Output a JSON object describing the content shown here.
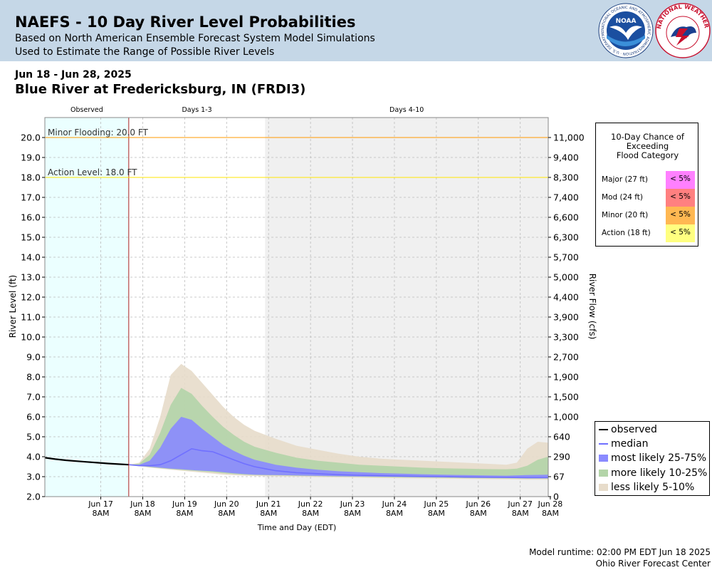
{
  "header": {
    "title": "NAEFS - 10 Day River Level Probabilities",
    "subtitle_1": "Based on North American Ensemble Forecast System Model Simulations",
    "subtitle_2": "Used to Estimate the Range of Possible River Levels",
    "noaa_logo_text": "NOAA",
    "noaa_ring_text": "NATIONAL OCEANIC AND ATMOSPHERIC ADMINISTRATION · U.S. DEPARTMENT OF COMMERCE",
    "nws_ring_text": "NATIONAL WEATHER SERVICE"
  },
  "date_range": "Jun 18 - Jun 28, 2025",
  "location": "Blue River at Fredericksburg, IN (FRDI3)",
  "footer": {
    "runtime": "Model runtime: 02:00 PM EDT Jun 18 2025",
    "center": "Ohio River Forecast Center"
  },
  "flood_table": {
    "title_lines": [
      "10-Day Chance of",
      "Exceeding",
      "Flood Category"
    ],
    "rows": [
      {
        "label": "Major (27 ft)",
        "value": "< 5%",
        "color": "#ff80ff"
      },
      {
        "label": "Mod (24 ft)",
        "value": "< 5%",
        "color": "#ff8080"
      },
      {
        "label": "Minor (20 ft)",
        "value": "< 5%",
        "color": "#ffb852"
      },
      {
        "label": "Action (18 ft)",
        "value": "< 5%",
        "color": "#ffff80"
      }
    ]
  },
  "legend": {
    "items": [
      {
        "label": "observed",
        "kind": "line",
        "color": "#000000"
      },
      {
        "label": "median",
        "kind": "line",
        "color": "#7070ff"
      },
      {
        "label": "most likely 25-75%",
        "kind": "fill",
        "color": "#8a8aff"
      },
      {
        "label": "more likely 10-25%",
        "kind": "fill",
        "color": "#b3d4a8"
      },
      {
        "label": "less likely 5-10%",
        "kind": "fill",
        "color": "#e7dcca"
      }
    ]
  },
  "chart_data": {
    "type": "area",
    "xlabel": "Time and Day (EDT)",
    "ylabel": "River Level (ft)",
    "y2label": "River Flow (cfs)",
    "ylim": [
      2.0,
      21.0
    ],
    "xlim": [
      16.0,
      28.0
    ],
    "x_unit": "day of June 2025 (fractional)",
    "grid": true,
    "yticks": [
      2.0,
      3.0,
      4.0,
      5.0,
      6.0,
      7.0,
      8.0,
      9.0,
      10.0,
      11.0,
      12.0,
      13.0,
      14.0,
      15.0,
      16.0,
      17.0,
      18.0,
      19.0,
      20.0
    ],
    "ytick_labels": [
      "2.0",
      "3.0",
      "4.0",
      "5.0",
      "6.0",
      "7.0",
      "8.0",
      "9.0",
      "10.0",
      "11.0",
      "12.0",
      "13.0",
      "14.0",
      "15.0",
      "16.0",
      "17.0",
      "18.0",
      "19.0",
      "20.0"
    ],
    "flow_labels": [
      "0",
      "67",
      "290",
      "640",
      "1,000",
      "1,500",
      "1,900",
      "2,700",
      "3,300",
      "3,900",
      "4,400",
      "5,000",
      "5,700",
      "6,300",
      "6,600",
      "7,400",
      "8,300",
      "9,400",
      "11,000"
    ],
    "xticks": [
      {
        "x": 17.333,
        "day": "Jun 17",
        "time": "8AM"
      },
      {
        "x": 18.333,
        "day": "Jun 18",
        "time": "8AM"
      },
      {
        "x": 19.333,
        "day": "Jun 19",
        "time": "8AM"
      },
      {
        "x": 20.333,
        "day": "Jun 20",
        "time": "8AM"
      },
      {
        "x": 21.333,
        "day": "Jun 21",
        "time": "8AM"
      },
      {
        "x": 22.333,
        "day": "Jun 22",
        "time": "8AM"
      },
      {
        "x": 23.333,
        "day": "Jun 23",
        "time": "8AM"
      },
      {
        "x": 24.333,
        "day": "Jun 24",
        "time": "8AM"
      },
      {
        "x": 25.333,
        "day": "Jun 25",
        "time": "8AM"
      },
      {
        "x": 26.333,
        "day": "Jun 26",
        "time": "8AM"
      },
      {
        "x": 27.333,
        "day": "Jun 27",
        "time": "8AM"
      },
      {
        "x": 28.333,
        "day": "Jun 28",
        "time": "8AM"
      }
    ],
    "periods": [
      {
        "label": "Observed",
        "start": 16.0,
        "end": 18.0
      },
      {
        "label": "Days 1-3",
        "start": 18.0,
        "end": 21.25
      },
      {
        "label": "Days 4-10",
        "start": 21.25,
        "end": 28.0
      }
    ],
    "forecast_start": 18.0,
    "thresholds": [
      {
        "label": "Minor Flooding: 20.0 FT",
        "value": 20.0,
        "color": "#ff9900"
      },
      {
        "label": "Action Level: 18.0 FT",
        "value": 18.0,
        "color": "#ffe600"
      }
    ],
    "observed": {
      "name": "observed",
      "x": [
        16.0,
        16.25,
        16.5,
        16.75,
        17.0,
        17.25,
        17.5,
        17.75,
        18.0
      ],
      "y": [
        3.95,
        3.88,
        3.82,
        3.78,
        3.74,
        3.7,
        3.66,
        3.63,
        3.6
      ]
    },
    "median": {
      "name": "median",
      "x": [
        18.0,
        18.25,
        18.5,
        18.75,
        19.0,
        19.25,
        19.5,
        19.75,
        20.0,
        20.25,
        20.5,
        20.75,
        21.0,
        21.5,
        22.0,
        22.5,
        23.0,
        23.5,
        24.0,
        24.5,
        25.0,
        25.5,
        26.0,
        26.5,
        27.0,
        27.5,
        28.0
      ],
      "y": [
        3.6,
        3.55,
        3.55,
        3.6,
        3.8,
        4.1,
        4.4,
        4.3,
        4.25,
        4.05,
        3.85,
        3.65,
        3.5,
        3.3,
        3.2,
        3.15,
        3.1,
        3.07,
        3.05,
        3.03,
        3.01,
        3.0,
        2.98,
        2.97,
        2.96,
        2.95,
        2.95
      ]
    },
    "bands": [
      {
        "name": "less likely 5-10%",
        "color": "#e7dcca",
        "x": [
          18.0,
          18.25,
          18.5,
          18.75,
          19.0,
          19.25,
          19.5,
          19.75,
          20.0,
          20.25,
          20.5,
          20.75,
          21.0,
          21.5,
          22.0,
          22.5,
          23.0,
          23.5,
          24.0,
          24.5,
          25.0,
          25.5,
          26.0,
          26.5,
          27.0,
          27.25,
          27.5,
          27.75,
          28.0
        ],
        "upper": [
          3.6,
          3.7,
          4.4,
          6.0,
          8.1,
          8.65,
          8.3,
          7.7,
          7.1,
          6.5,
          6.0,
          5.6,
          5.3,
          4.9,
          4.55,
          4.35,
          4.15,
          4.0,
          3.9,
          3.85,
          3.8,
          3.75,
          3.7,
          3.65,
          3.6,
          3.7,
          4.4,
          4.75,
          4.7
        ],
        "lower": [
          3.6,
          3.52,
          3.45,
          3.4,
          3.35,
          3.3,
          3.25,
          3.2,
          3.15,
          3.1,
          3.07,
          3.05,
          3.03,
          3.01,
          3.0,
          2.98,
          2.96,
          2.95,
          2.93,
          2.92,
          2.91,
          2.9,
          2.89,
          2.88,
          2.87,
          2.86,
          2.85,
          2.85,
          2.85
        ]
      },
      {
        "name": "more likely 10-25%",
        "color": "#b3d4a8",
        "x": [
          18.0,
          18.25,
          18.5,
          18.75,
          19.0,
          19.25,
          19.5,
          19.75,
          20.0,
          20.25,
          20.5,
          20.75,
          21.0,
          21.5,
          22.0,
          22.5,
          23.0,
          23.5,
          24.0,
          24.5,
          25.0,
          25.5,
          26.0,
          26.5,
          27.0,
          27.25,
          27.5,
          27.75,
          28.0
        ],
        "upper": [
          3.6,
          3.65,
          4.1,
          5.2,
          6.6,
          7.45,
          7.15,
          6.55,
          6.0,
          5.5,
          5.1,
          4.75,
          4.5,
          4.2,
          3.95,
          3.8,
          3.7,
          3.6,
          3.55,
          3.5,
          3.45,
          3.42,
          3.4,
          3.38,
          3.37,
          3.4,
          3.55,
          3.85,
          4.0
        ],
        "lower": [
          3.6,
          3.54,
          3.48,
          3.43,
          3.38,
          3.34,
          3.3,
          3.26,
          3.22,
          3.17,
          3.13,
          3.1,
          3.08,
          3.06,
          3.04,
          3.02,
          3.0,
          2.99,
          2.97,
          2.96,
          2.95,
          2.94,
          2.93,
          2.92,
          2.91,
          2.91,
          2.9,
          2.9,
          2.9
        ]
      },
      {
        "name": "most likely 25-75%",
        "color": "#8a8aff",
        "x": [
          18.0,
          18.25,
          18.5,
          18.75,
          19.0,
          19.25,
          19.5,
          19.75,
          20.0,
          20.25,
          20.5,
          20.75,
          21.0,
          21.5,
          22.0,
          22.5,
          23.0,
          23.5,
          24.0,
          24.5,
          25.0,
          25.5,
          26.0,
          26.5,
          27.0,
          27.5,
          28.0
        ],
        "upper": [
          3.6,
          3.6,
          3.8,
          4.45,
          5.4,
          6.0,
          5.85,
          5.4,
          5.0,
          4.6,
          4.3,
          4.05,
          3.85,
          3.6,
          3.45,
          3.35,
          3.27,
          3.22,
          3.18,
          3.15,
          3.12,
          3.1,
          3.08,
          3.06,
          3.05,
          3.08,
          3.1
        ],
        "lower": [
          3.6,
          3.55,
          3.5,
          3.45,
          3.4,
          3.37,
          3.33,
          3.3,
          3.27,
          3.22,
          3.17,
          3.13,
          3.1,
          3.08,
          3.06,
          3.04,
          3.02,
          3.01,
          3.0,
          2.99,
          2.98,
          2.97,
          2.96,
          2.95,
          2.95,
          2.94,
          2.94
        ]
      }
    ]
  }
}
